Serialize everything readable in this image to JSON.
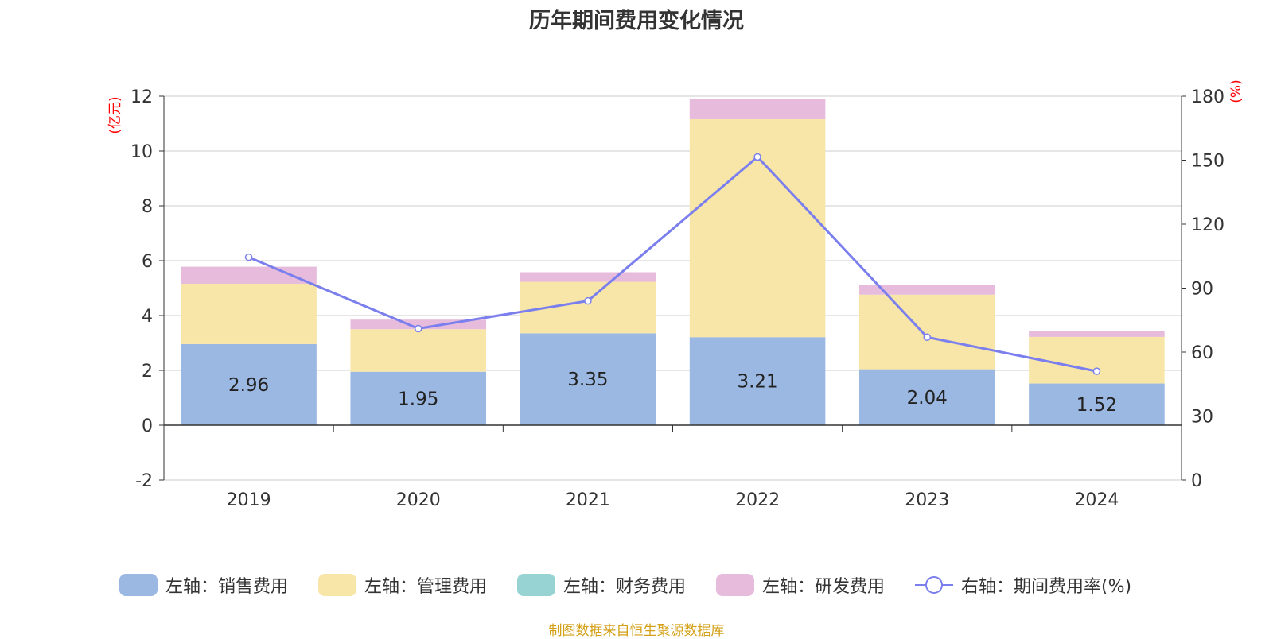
{
  "chart_data": {
    "type": "bar",
    "title": "历年期间费用变化情况",
    "categories": [
      "2019",
      "2020",
      "2021",
      "2022",
      "2023",
      "2024"
    ],
    "left_axis": {
      "label": "(亿元)",
      "ylim": [
        -2,
        12
      ],
      "ticks": [
        "-2",
        "0",
        "2",
        "4",
        "6",
        "8",
        "10",
        "12"
      ]
    },
    "right_axis": {
      "label": "(%)",
      "ylim": [
        0,
        180
      ],
      "ticks": [
        "0",
        "30",
        "60",
        "90",
        "120",
        "150",
        "180"
      ]
    },
    "series": [
      {
        "name": "左轴：销售费用",
        "type": "bar",
        "axis": "left",
        "color": "#9bb8e2",
        "values": [
          2.96,
          1.95,
          3.35,
          3.21,
          2.04,
          1.52
        ],
        "data_labels": [
          "2.96",
          "1.95",
          "3.35",
          "3.21",
          "2.04",
          "1.52"
        ]
      },
      {
        "name": "左轴：管理费用",
        "type": "bar",
        "axis": "left",
        "color": "#f7e6a8",
        "values": [
          2.2,
          1.55,
          1.88,
          7.95,
          2.72,
          1.7
        ]
      },
      {
        "name": "左轴：财务费用",
        "type": "bar",
        "axis": "left",
        "color": "#96d3d2",
        "values": [
          0.0,
          0.0,
          0.0,
          0.0,
          0.0,
          0.0
        ]
      },
      {
        "name": "左轴：研发费用",
        "type": "bar",
        "axis": "left",
        "color": "#e7bbdb",
        "values": [
          0.62,
          0.35,
          0.35,
          0.73,
          0.36,
          0.2
        ]
      },
      {
        "name": "右轴：期间费用率(%)",
        "type": "line",
        "axis": "right",
        "color": "#7b7fee",
        "values": [
          104.5,
          71.0,
          84.0,
          151.5,
          67.0,
          51.0
        ]
      }
    ],
    "grid": true,
    "legend_position": "bottom"
  },
  "source_note": "制图数据来自恒生聚源数据库"
}
